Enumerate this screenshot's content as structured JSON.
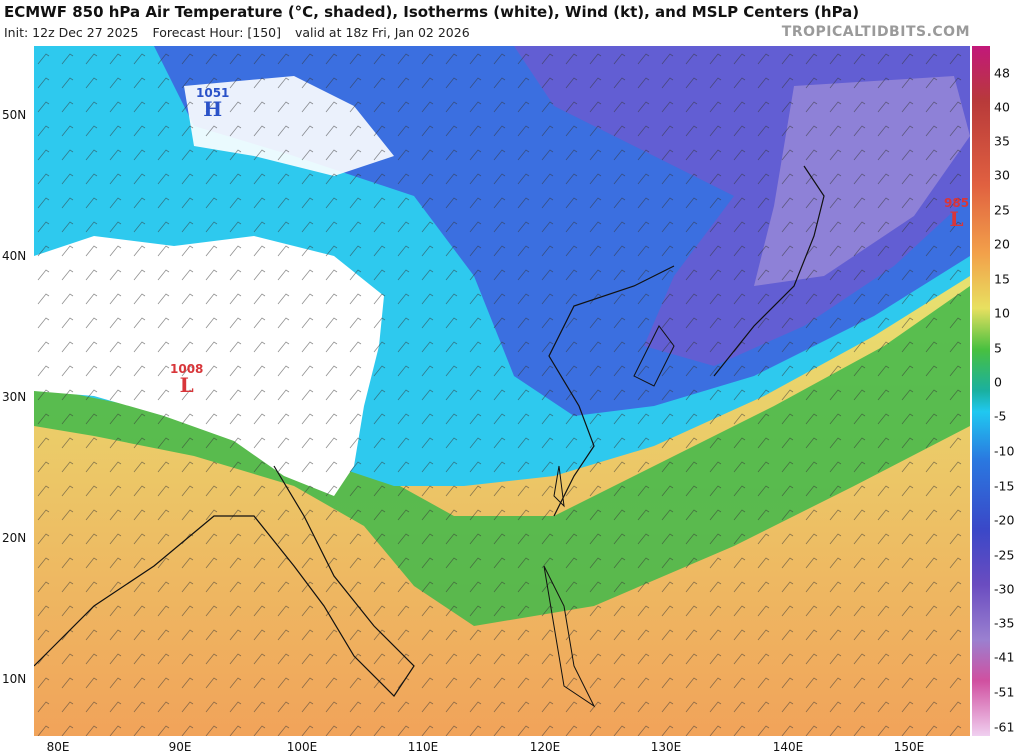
{
  "header": {
    "title": "ECMWF 850 hPa Air Temperature (°C, shaded), Isotherms (white), Wind (kt), and MSLP Centers (hPa)",
    "init": "Init: 12z Dec 27 2025",
    "forecast_hour": "Forecast Hour: [150]",
    "valid": "valid at 18z Fri, Jan 02 2026",
    "brand": "TROPICALTIDBITS.COM"
  },
  "map": {
    "lat_labels": [
      "50N",
      "40N",
      "30N",
      "20N",
      "10N"
    ],
    "lon_labels": [
      "80E",
      "90E",
      "100E",
      "110E",
      "120E",
      "130E",
      "140E",
      "150E"
    ]
  },
  "colorbar": {
    "labels": [
      "48",
      "40",
      "35",
      "30",
      "25",
      "20",
      "15",
      "10",
      "5",
      "0",
      "-5",
      "-10",
      "-15",
      "-20",
      "-25",
      "-30",
      "-35",
      "-41",
      "-51",
      "-61"
    ]
  },
  "pressure_centers": [
    {
      "type": "H",
      "value": "1051",
      "color": "#2a52c8"
    },
    {
      "type": "L",
      "value": "1008",
      "color": "#d8363a"
    },
    {
      "type": "L",
      "value": "985",
      "color": "#d8363a"
    }
  ]
}
